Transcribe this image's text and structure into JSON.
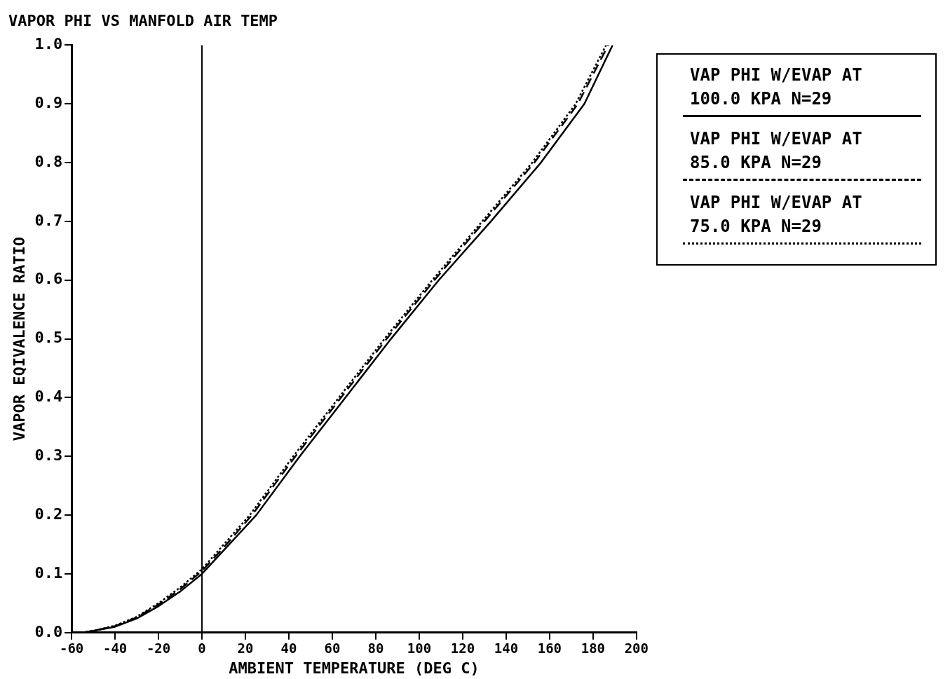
{
  "chart_data": {
    "type": "line",
    "title": "VAPOR PHI VS MANFOLD AIR TEMP",
    "xlabel": "AMBIENT TEMPERATURE (DEG C)",
    "ylabel": "VAPOR EQIVALENCE RATIO",
    "xlim": [
      -60,
      200
    ],
    "xticks": [
      -60,
      -40,
      -20,
      0,
      20,
      40,
      60,
      80,
      100,
      120,
      140,
      160,
      180,
      200
    ],
    "ylim": [
      0,
      1
    ],
    "yticks": [
      {
        "value": 0,
        "label": "0.0"
      },
      0.1,
      0.2,
      0.3,
      0.4,
      0.5,
      0.6,
      0.7,
      0.8,
      0.9,
      {
        "value": 1,
        "label": "1.0"
      }
    ],
    "grid": false,
    "legend": "right",
    "marker": "none",
    "ref_lines": [
      {
        "axis": "x",
        "value": 0,
        "color": "#000000",
        "line_style": "solid"
      }
    ],
    "series": [
      {
        "name": "VAP PHI W/EVAP AT 100.0 KPA N=29",
        "color": "#000000",
        "line_style": "solid",
        "x": [
          -55,
          -50,
          -40,
          -30,
          -20,
          -10,
          0,
          10,
          25,
          45,
          66,
          87,
          109,
          133,
          156,
          176,
          189
        ],
        "values": [
          0,
          0.003,
          0.01,
          0.024,
          0.045,
          0.07,
          0.1,
          0.14,
          0.2,
          0.3,
          0.4,
          0.5,
          0.6,
          0.7,
          0.8,
          0.9,
          1.0
        ]
      },
      {
        "name": "VAP PHI W/EVAP AT 85.0 KPA N=29",
        "color": "#000000",
        "line_style": "dashed",
        "x": [
          -55,
          -50,
          -40,
          -30,
          -20,
          -10,
          0,
          10,
          23,
          43,
          64,
          85,
          107,
          130,
          153,
          173,
          187
        ],
        "values": [
          0,
          0.003,
          0.011,
          0.026,
          0.048,
          0.074,
          0.105,
          0.145,
          0.2,
          0.3,
          0.4,
          0.5,
          0.6,
          0.7,
          0.8,
          0.9,
          1.0
        ]
      },
      {
        "name": "VAP PHI W/EVAP AT 75.0 KPA N=29",
        "color": "#000000",
        "line_style": "dotted",
        "x": [
          -55,
          -50,
          -40,
          -30,
          -20,
          -10,
          0,
          10,
          22,
          42,
          63,
          84,
          106,
          129,
          152,
          172,
          186
        ],
        "values": [
          0,
          0.003,
          0.012,
          0.027,
          0.05,
          0.077,
          0.108,
          0.15,
          0.2,
          0.3,
          0.4,
          0.5,
          0.6,
          0.7,
          0.8,
          0.9,
          1.0
        ]
      }
    ]
  }
}
